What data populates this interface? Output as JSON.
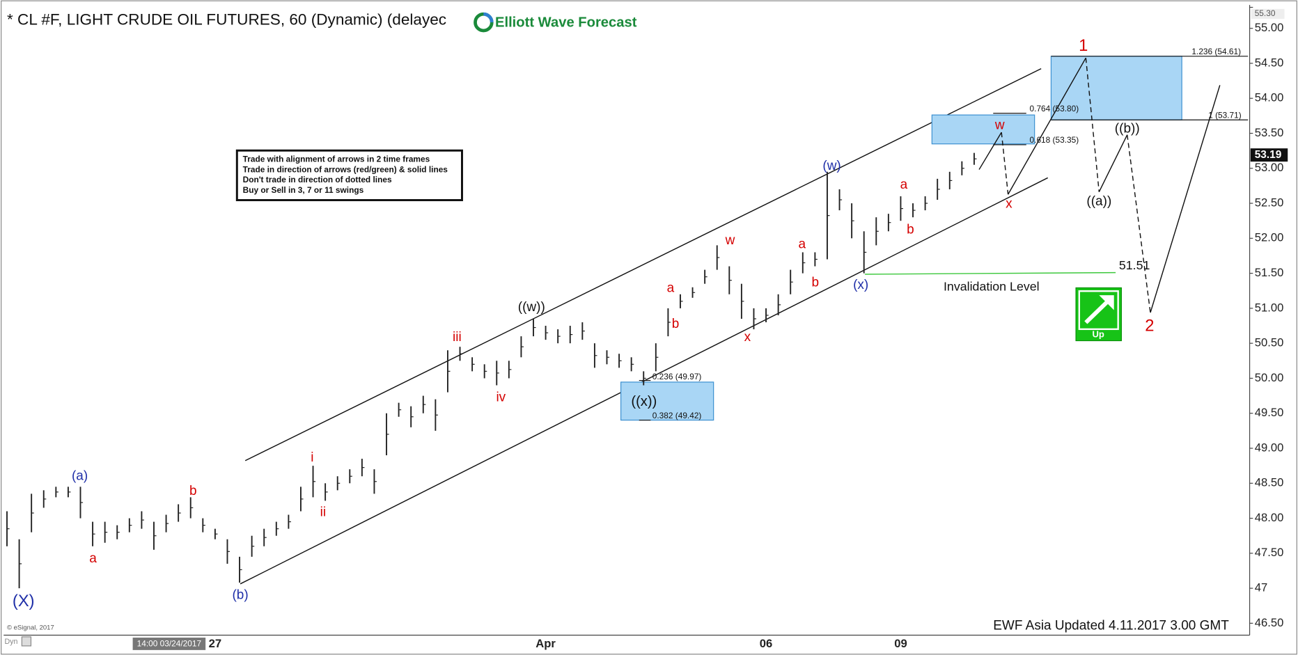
{
  "chart_data": {
    "type": "hilo",
    "title": "* CL #F, LIGHT CRUDE OIL FUTURES, 60 (Dynamic) (delayec",
    "logo": "Elliott Wave Forecast",
    "footer": "EWF Asia Updated 4.11.2017 3.00 GMT",
    "copyright": "© eSignal, 2017",
    "mode": "Dyn",
    "cursor_label": "14:00 03/24/2017",
    "bar_color": "#222222",
    "categories": [
      null,
      null,
      null,
      null,
      null,
      null,
      null,
      null,
      null,
      null,
      null,
      null,
      null,
      null,
      null,
      null,
      null,
      "27",
      null,
      null,
      null,
      null,
      null,
      null,
      null,
      null,
      null,
      null,
      null,
      null,
      null,
      null,
      null,
      null,
      null,
      null,
      null,
      null,
      null,
      null,
      null,
      null,
      null,
      null,
      "Apr",
      null,
      null,
      null,
      null,
      null,
      null,
      null,
      null,
      null,
      null,
      null,
      null,
      null,
      null,
      null,
      null,
      null,
      "06",
      null,
      null,
      null,
      null,
      null,
      null,
      null,
      null,
      null,
      null,
      "09",
      null,
      null,
      null,
      null,
      null,
      null
    ],
    "low": [
      47.6,
      47.0,
      47.8,
      48.15,
      48.3,
      48.3,
      48.0,
      47.6,
      47.65,
      47.7,
      47.8,
      47.85,
      47.55,
      47.8,
      47.95,
      48.0,
      47.8,
      47.7,
      47.35,
      47.08,
      47.45,
      47.6,
      47.75,
      47.85,
      48.1,
      48.3,
      48.25,
      48.4,
      48.5,
      48.6,
      48.35,
      48.9,
      49.45,
      49.3,
      49.5,
      49.25,
      49.8,
      50.25,
      50.1,
      50.0,
      49.9,
      50.0,
      50.3,
      50.6,
      50.55,
      50.5,
      50.5,
      50.55,
      50.15,
      50.2,
      50.15,
      50.1,
      49.9,
      50.1,
      50.6,
      51.0,
      51.15,
      51.35,
      51.55,
      51.2,
      50.85,
      50.7,
      50.8,
      50.9,
      51.2,
      51.5,
      51.6,
      51.7,
      52.4,
      52.0,
      51.5,
      51.9,
      52.1,
      52.25,
      52.3,
      52.4,
      52.55,
      52.7,
      52.9,
      53.05
    ],
    "high": [
      48.1,
      47.7,
      48.35,
      48.4,
      48.45,
      48.45,
      48.45,
      47.95,
      47.95,
      47.9,
      48.0,
      48.1,
      47.95,
      48.05,
      48.2,
      48.3,
      48.0,
      47.85,
      47.7,
      47.45,
      47.75,
      47.85,
      47.95,
      48.05,
      48.45,
      48.75,
      48.5,
      48.6,
      48.7,
      48.85,
      48.7,
      49.5,
      49.65,
      49.6,
      49.75,
      49.7,
      50.4,
      50.45,
      50.3,
      50.2,
      50.25,
      50.25,
      50.6,
      50.85,
      50.75,
      50.7,
      50.75,
      50.8,
      50.5,
      50.4,
      50.35,
      50.3,
      50.1,
      50.5,
      51.0,
      51.2,
      51.3,
      51.55,
      51.9,
      51.6,
      51.35,
      51.0,
      51.0,
      51.2,
      51.55,
      51.8,
      51.8,
      52.95,
      52.7,
      52.5,
      52.1,
      52.3,
      52.35,
      52.6,
      52.5,
      52.6,
      52.85,
      52.95,
      53.1,
      53.22
    ],
    "ylim": [
      46.33,
      55.31
    ],
    "yticks": [
      {
        "value": 46.5,
        "label": "46.50"
      },
      47,
      {
        "value": 47.5,
        "label": "47.50"
      },
      {
        "value": 48,
        "label": "48.00"
      },
      {
        "value": 48.5,
        "label": "48.50"
      },
      {
        "value": 49,
        "label": "49.00"
      },
      {
        "value": 49.5,
        "label": "49.50"
      },
      {
        "value": 50,
        "label": "50.00"
      },
      {
        "value": 50.5,
        "label": "50.50"
      },
      {
        "value": 51,
        "label": "51.00"
      },
      {
        "value": 51.5,
        "label": "51.50"
      },
      {
        "value": 52,
        "label": "52.00"
      },
      {
        "value": 52.5,
        "label": "52.50"
      },
      {
        "value": 53,
        "label": "53.00"
      },
      {
        "value": 53.5,
        "label": "53.50"
      },
      {
        "value": 54,
        "label": "54.00"
      },
      {
        "value": 54.5,
        "label": "54.50"
      },
      {
        "value": 55,
        "label": "55.00"
      },
      {
        "value": 55.3,
        "label": "55.30"
      }
    ],
    "last_price": 53.19,
    "invalidation": {
      "value": 51.51,
      "label": "Invalidation Level",
      "color": "#3cc83c"
    },
    "instructions": [
      "Trade with alignment of arrows in 2 time frames",
      "Trade in direction of arrows (red/green) & solid lines",
      "Don't trade in direction of dotted lines",
      "Buy or Sell in 3, 7 or 11 swings"
    ],
    "fib_levels": [
      "0.236 (49.97)",
      "0.382 (49.42)",
      "0.764 (53.80)",
      "0.618 (53.35)",
      "1.236 (54.61)",
      "1 (53.71)"
    ],
    "signal": "Up",
    "annotations": [
      {
        "text": "(X)",
        "color": "#1f2fa8"
      },
      {
        "text": "(a)",
        "color": "#1f2fa8"
      },
      {
        "text": "a",
        "color": "#d40000"
      },
      {
        "text": "b",
        "color": "#d40000"
      },
      {
        "text": "(b)",
        "color": "#1f2fa8"
      },
      {
        "text": "i",
        "color": "#d40000"
      },
      {
        "text": "ii",
        "color": "#d40000"
      },
      {
        "text": "iii",
        "color": "#d40000"
      },
      {
        "text": "iv",
        "color": "#d40000"
      },
      {
        "text": "((w))",
        "color": "#111111"
      },
      {
        "text": "((x))",
        "color": "#111111"
      },
      {
        "text": "a",
        "color": "#d40000"
      },
      {
        "text": "b",
        "color": "#d40000"
      },
      {
        "text": "w",
        "color": "#d40000"
      },
      {
        "text": "x",
        "color": "#d40000"
      },
      {
        "text": "a",
        "color": "#d40000"
      },
      {
        "text": "b",
        "color": "#d40000"
      },
      {
        "text": "(w)",
        "color": "#1f2fa8"
      },
      {
        "text": "(x)",
        "color": "#1f2fa8"
      },
      {
        "text": "a",
        "color": "#d40000"
      },
      {
        "text": "b",
        "color": "#d40000"
      },
      {
        "text": "w",
        "color": "#d40000"
      },
      {
        "text": "x",
        "color": "#d40000"
      },
      {
        "text": "1",
        "color": "#d40000"
      },
      {
        "text": "((a))",
        "color": "#111111"
      },
      {
        "text": "((b))",
        "color": "#111111"
      },
      {
        "text": "2",
        "color": "#d40000"
      }
    ]
  }
}
